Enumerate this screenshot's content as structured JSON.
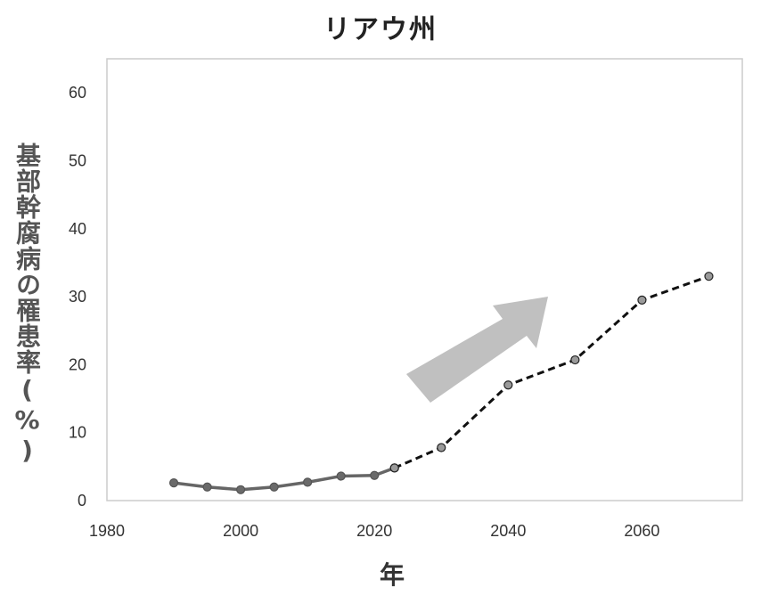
{
  "chart_data": {
    "type": "line",
    "title": "リアウ州",
    "xlabel": "年",
    "ylabel": "基部幹腐病の罹患率(%)",
    "xlim": [
      1980,
      2075
    ],
    "ylim": [
      0,
      65
    ],
    "xticks": [
      1980,
      2000,
      2020,
      2040,
      2060
    ],
    "yticks": [
      0,
      10,
      20,
      30,
      40,
      50,
      60
    ],
    "grid": false,
    "series": [
      {
        "style": "solid",
        "color": "#666666",
        "x": [
          1990,
          1995,
          2000,
          2005,
          2010,
          2015,
          2020,
          2023
        ],
        "y": [
          2.6,
          2.0,
          1.6,
          2.0,
          2.7,
          3.6,
          3.7,
          4.8
        ]
      },
      {
        "style": "dashed",
        "color": "#111111",
        "x": [
          2023,
          2030,
          2040,
          2050,
          2060,
          2070
        ],
        "y": [
          4.8,
          7.8,
          17.0,
          20.7,
          29.5,
          33.0
        ]
      }
    ],
    "annotations": [
      {
        "type": "arrow",
        "direction": "up-right",
        "color": "#c0c0c0"
      }
    ]
  }
}
